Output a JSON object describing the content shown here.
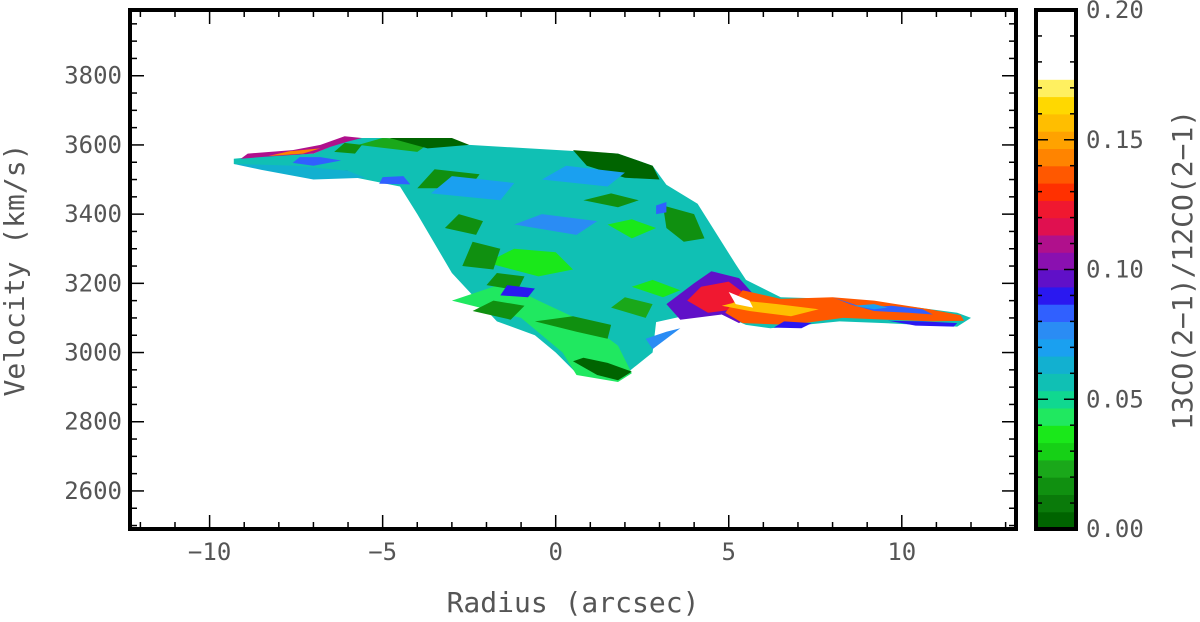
{
  "chart_data": {
    "type": "heatmap",
    "title": "",
    "xlabel": "Radius (arcsec)",
    "ylabel": "Velocity (km/s)",
    "colorbar_label": "13CO(2−1)/12CO(2−1)",
    "xlim": [
      -12.3,
      13.3
    ],
    "ylim": [
      2490,
      3990
    ],
    "x_ticks": [
      -10,
      -5,
      0,
      5,
      10
    ],
    "x_tick_labels": [
      "−10",
      "−5",
      "0",
      "5",
      "10"
    ],
    "y_ticks": [
      2600,
      2800,
      3000,
      3200,
      3400,
      3600,
      3800
    ],
    "y_tick_labels": [
      "2600",
      "2800",
      "3000",
      "3200",
      "3400",
      "3600",
      "3800"
    ],
    "colorbar": {
      "range": [
        0.0,
        0.2
      ],
      "ticks": [
        0.0,
        0.05,
        0.1,
        0.15,
        0.2
      ],
      "tick_labels": [
        "0.00",
        "0.05",
        "0.10",
        "0.15",
        "0.20"
      ],
      "colors": [
        "#006400",
        "#0a7a0a",
        "#109010",
        "#1aa81a",
        "#16d016",
        "#1ae81a",
        "#20e860",
        "#10d890",
        "#10c0b4",
        "#12b0d0",
        "#1aa0f0",
        "#2a8cf4",
        "#3060ff",
        "#2a18f0",
        "#6010c8",
        "#8a10b0",
        "#b0108c",
        "#e01050",
        "#f01830",
        "#ff3000",
        "#ff5800",
        "#ff8400",
        "#ffa200",
        "#ffbe00",
        "#ffd800",
        "#fff060",
        "#ffffff",
        "#ffffff",
        "#ffffff",
        "#ffffff"
      ]
    },
    "grid": false,
    "regions": [
      {
        "level": 0.055,
        "points": [
          [
            -9.3,
            3560
          ],
          [
            -8.6,
            3567
          ],
          [
            -7.0,
            3575
          ],
          [
            -5.9,
            3620
          ],
          [
            -4.9,
            3620
          ],
          [
            -2.5,
            3600
          ],
          [
            1.8,
            3575
          ],
          [
            2.8,
            3540
          ],
          [
            3.2,
            3485
          ],
          [
            4.1,
            3430
          ],
          [
            5.2,
            3255
          ],
          [
            5.5,
            3210
          ],
          [
            6.5,
            3160
          ],
          [
            8.1,
            3155
          ],
          [
            9.7,
            3140
          ],
          [
            11.6,
            3115
          ],
          [
            12.0,
            3100
          ],
          [
            11.6,
            3075
          ],
          [
            9.5,
            3085
          ],
          [
            8.2,
            3090
          ],
          [
            6.2,
            3070
          ],
          [
            5.5,
            3080
          ],
          [
            4.8,
            3110
          ],
          [
            3.8,
            3108
          ],
          [
            2.9,
            3088
          ],
          [
            2.8,
            3000
          ],
          [
            1.8,
            2920
          ],
          [
            0.6,
            2940
          ],
          [
            0.0,
            3000
          ],
          [
            -0.6,
            3050
          ],
          [
            -1.7,
            3090
          ],
          [
            -3.0,
            3230
          ],
          [
            -4.0,
            3400
          ],
          [
            -4.5,
            3480
          ],
          [
            -6.5,
            3520
          ],
          [
            -9.3,
            3545
          ]
        ]
      },
      {
        "level": 0.045,
        "points": [
          [
            -3.0,
            3150
          ],
          [
            -1.0,
            3100
          ],
          [
            0.2,
            3000
          ],
          [
            0.6,
            2935
          ],
          [
            1.8,
            2915
          ],
          [
            2.2,
            2940
          ],
          [
            1.8,
            3020
          ],
          [
            1.0,
            3080
          ],
          [
            -0.5,
            3150
          ],
          [
            -1.5,
            3200
          ]
        ]
      },
      {
        "level": 0.0,
        "points": [
          [
            0.5,
            2975
          ],
          [
            1.2,
            2935
          ],
          [
            1.8,
            2920
          ],
          [
            2.2,
            2945
          ],
          [
            1.5,
            2970
          ],
          [
            0.8,
            2985
          ]
        ]
      },
      {
        "level": 0.015,
        "points": [
          [
            -0.6,
            3090
          ],
          [
            0.6,
            3060
          ],
          [
            1.5,
            3040
          ],
          [
            1.6,
            3080
          ],
          [
            0.5,
            3105
          ]
        ]
      },
      {
        "level": 0.035,
        "points": [
          [
            -2.0,
            3260
          ],
          [
            -0.5,
            3220
          ],
          [
            0.5,
            3240
          ],
          [
            0.0,
            3290
          ],
          [
            -1.2,
            3300
          ]
        ]
      },
      {
        "level": 0.015,
        "points": [
          [
            -2.7,
            3250
          ],
          [
            -1.8,
            3240
          ],
          [
            -1.6,
            3300
          ],
          [
            -2.4,
            3320
          ]
        ]
      },
      {
        "level": 0.015,
        "points": [
          [
            -3.2,
            3360
          ],
          [
            -2.3,
            3340
          ],
          [
            -2.1,
            3380
          ],
          [
            -2.8,
            3400
          ]
        ]
      },
      {
        "level": 0.015,
        "points": [
          [
            -4.0,
            3475
          ],
          [
            -2.5,
            3475
          ],
          [
            -2.2,
            3515
          ],
          [
            -3.5,
            3530
          ]
        ]
      },
      {
        "level": 0.025,
        "points": [
          [
            -5.7,
            3600
          ],
          [
            -5.0,
            3620
          ],
          [
            -3.5,
            3615
          ],
          [
            -4.0,
            3580
          ]
        ]
      },
      {
        "level": 0.005,
        "points": [
          [
            -4.8,
            3620
          ],
          [
            -3.0,
            3620
          ],
          [
            -2.5,
            3600
          ],
          [
            -3.7,
            3590
          ]
        ]
      },
      {
        "level": 0.015,
        "points": [
          [
            -6.4,
            3580
          ],
          [
            -5.8,
            3575
          ],
          [
            -5.6,
            3600
          ],
          [
            -6.1,
            3606
          ]
        ]
      },
      {
        "level": 0.0,
        "points": [
          [
            0.5,
            3585
          ],
          [
            1.8,
            3575
          ],
          [
            2.8,
            3540
          ],
          [
            3.0,
            3500
          ],
          [
            2.0,
            3505
          ],
          [
            0.9,
            3540
          ]
        ]
      },
      {
        "level": 0.015,
        "points": [
          [
            0.8,
            3440
          ],
          [
            1.8,
            3420
          ],
          [
            2.4,
            3440
          ],
          [
            1.6,
            3460
          ]
        ]
      },
      {
        "level": 0.04,
        "points": [
          [
            1.5,
            3370
          ],
          [
            2.2,
            3330
          ],
          [
            2.9,
            3360
          ],
          [
            2.2,
            3385
          ]
        ]
      },
      {
        "level": 0.015,
        "points": [
          [
            3.1,
            3425
          ],
          [
            4.0,
            3400
          ],
          [
            4.3,
            3330
          ],
          [
            3.7,
            3320
          ],
          [
            3.2,
            3360
          ]
        ]
      },
      {
        "level": 0.04,
        "points": [
          [
            2.2,
            3190
          ],
          [
            3.1,
            3160
          ],
          [
            3.6,
            3180
          ],
          [
            2.8,
            3210
          ]
        ]
      },
      {
        "level": 0.025,
        "points": [
          [
            1.6,
            3130
          ],
          [
            2.6,
            3100
          ],
          [
            2.8,
            3140
          ],
          [
            2.0,
            3160
          ]
        ]
      },
      {
        "level": 0.02,
        "points": [
          [
            -2.4,
            3120
          ],
          [
            -1.3,
            3095
          ],
          [
            -0.9,
            3135
          ],
          [
            -1.8,
            3150
          ]
        ]
      },
      {
        "level": 0.015,
        "points": [
          [
            -2.0,
            3195
          ],
          [
            -1.1,
            3180
          ],
          [
            -0.9,
            3220
          ],
          [
            -1.7,
            3230
          ]
        ]
      },
      {
        "level": 0.07,
        "points": [
          [
            -3.6,
            3460
          ],
          [
            -1.6,
            3440
          ],
          [
            -1.2,
            3490
          ],
          [
            -3.0,
            3510
          ]
        ]
      },
      {
        "level": 0.075,
        "points": [
          [
            -1.2,
            3370
          ],
          [
            0.6,
            3340
          ],
          [
            1.2,
            3380
          ],
          [
            -0.4,
            3400
          ]
        ]
      },
      {
        "level": 0.07,
        "points": [
          [
            -0.4,
            3500
          ],
          [
            1.5,
            3480
          ],
          [
            2.0,
            3520
          ],
          [
            0.3,
            3540
          ]
        ]
      },
      {
        "level": 0.075,
        "points": [
          [
            4.0,
            3120
          ],
          [
            4.9,
            3130
          ],
          [
            5.3,
            3200
          ],
          [
            4.6,
            3235
          ],
          [
            3.9,
            3180
          ]
        ]
      },
      {
        "level": 0.085,
        "points": [
          [
            -7.6,
            3548
          ],
          [
            -7.0,
            3540
          ],
          [
            -6.2,
            3555
          ],
          [
            -6.8,
            3565
          ],
          [
            -7.4,
            3565
          ]
        ]
      },
      {
        "level": 0.11,
        "points": [
          [
            -9.1,
            3560
          ],
          [
            -8.4,
            3566
          ],
          [
            -7.0,
            3575
          ],
          [
            -6.5,
            3595
          ],
          [
            -6.0,
            3610
          ],
          [
            -5.6,
            3620
          ],
          [
            -6.1,
            3625
          ],
          [
            -6.8,
            3600
          ],
          [
            -7.6,
            3585
          ],
          [
            -8.9,
            3575
          ]
        ]
      },
      {
        "level": 0.145,
        "points": [
          [
            -8.3,
            3568
          ],
          [
            -7.3,
            3575
          ],
          [
            -6.8,
            3590
          ],
          [
            -7.7,
            3582
          ]
        ]
      },
      {
        "level": 0.09,
        "points": [
          [
            -7.3,
            3515
          ],
          [
            -6.3,
            3510
          ],
          [
            -6.0,
            3525
          ],
          [
            -7.0,
            3530
          ]
        ]
      },
      {
        "level": 0.085,
        "points": [
          [
            -5.1,
            3488
          ],
          [
            -4.2,
            3486
          ],
          [
            -4.4,
            3510
          ],
          [
            -5.0,
            3507
          ]
        ]
      },
      {
        "level": 0.09,
        "points": [
          [
            -1.6,
            3165
          ],
          [
            -0.8,
            3160
          ],
          [
            -0.6,
            3185
          ],
          [
            -1.4,
            3195
          ]
        ]
      },
      {
        "level": 0.095,
        "points": [
          [
            4.5,
            3235
          ],
          [
            5.3,
            3215
          ],
          [
            5.7,
            3170
          ],
          [
            6.0,
            3140
          ],
          [
            5.3,
            3085
          ],
          [
            4.8,
            3110
          ],
          [
            3.6,
            3095
          ],
          [
            3.2,
            3140
          ],
          [
            4.0,
            3200
          ]
        ]
      },
      {
        "level": 0.125,
        "points": [
          [
            4.2,
            3190
          ],
          [
            5.0,
            3205
          ],
          [
            5.4,
            3175
          ],
          [
            5.2,
            3125
          ],
          [
            4.4,
            3115
          ],
          [
            3.8,
            3150
          ]
        ]
      },
      {
        "level": 0.135,
        "points": [
          [
            5.4,
            3180
          ],
          [
            6.5,
            3155
          ],
          [
            8.0,
            3160
          ],
          [
            9.2,
            3150
          ],
          [
            10.8,
            3125
          ],
          [
            11.7,
            3108
          ],
          [
            11.8,
            3092
          ],
          [
            10.9,
            3090
          ],
          [
            9.6,
            3095
          ],
          [
            8.3,
            3100
          ],
          [
            6.8,
            3080
          ],
          [
            5.4,
            3085
          ],
          [
            4.9,
            3115
          ]
        ]
      },
      {
        "level": 0.16,
        "points": [
          [
            4.8,
            3135
          ],
          [
            5.6,
            3120
          ],
          [
            6.8,
            3105
          ],
          [
            7.6,
            3125
          ],
          [
            6.4,
            3140
          ],
          [
            5.4,
            3150
          ]
        ]
      },
      {
        "level": 0.175,
        "points": [
          [
            5.0,
            3175
          ],
          [
            5.6,
            3150
          ],
          [
            5.7,
            3130
          ],
          [
            5.2,
            3140
          ]
        ]
      },
      {
        "level": 0.085,
        "points": [
          [
            8.0,
            3160
          ],
          [
            8.9,
            3130
          ],
          [
            9.7,
            3135
          ],
          [
            10.6,
            3125
          ],
          [
            10.9,
            3110
          ],
          [
            10.2,
            3115
          ],
          [
            9.2,
            3120
          ],
          [
            8.5,
            3140
          ]
        ]
      },
      {
        "level": 0.07,
        "points": [
          [
            8.6,
            3135
          ],
          [
            9.2,
            3125
          ],
          [
            9.6,
            3130
          ],
          [
            9.2,
            3140
          ]
        ]
      },
      {
        "level": 0.09,
        "points": [
          [
            9.6,
            3092
          ],
          [
            10.6,
            3090
          ],
          [
            11.6,
            3085
          ],
          [
            11.5,
            3075
          ],
          [
            10.4,
            3078
          ]
        ]
      },
      {
        "level": 0.09,
        "points": [
          [
            6.3,
            3072
          ],
          [
            7.1,
            3070
          ],
          [
            7.4,
            3085
          ],
          [
            6.6,
            3090
          ]
        ]
      },
      {
        "level": 0.08,
        "points": [
          [
            3.2,
            3060
          ],
          [
            3.6,
            3070
          ],
          [
            2.8,
            3010
          ],
          [
            2.6,
            3040
          ]
        ]
      },
      {
        "level": 0.085,
        "points": [
          [
            2.9,
            3425
          ],
          [
            3.2,
            3435
          ],
          [
            3.2,
            3405
          ],
          [
            2.9,
            3400
          ]
        ]
      },
      {
        "level": 0.06,
        "points": [
          [
            -9.3,
            3545
          ],
          [
            -7.5,
            3540
          ],
          [
            -6.0,
            3525
          ],
          [
            -5.5,
            3505
          ],
          [
            -7.0,
            3500
          ],
          [
            -8.5,
            3528
          ]
        ]
      }
    ]
  }
}
